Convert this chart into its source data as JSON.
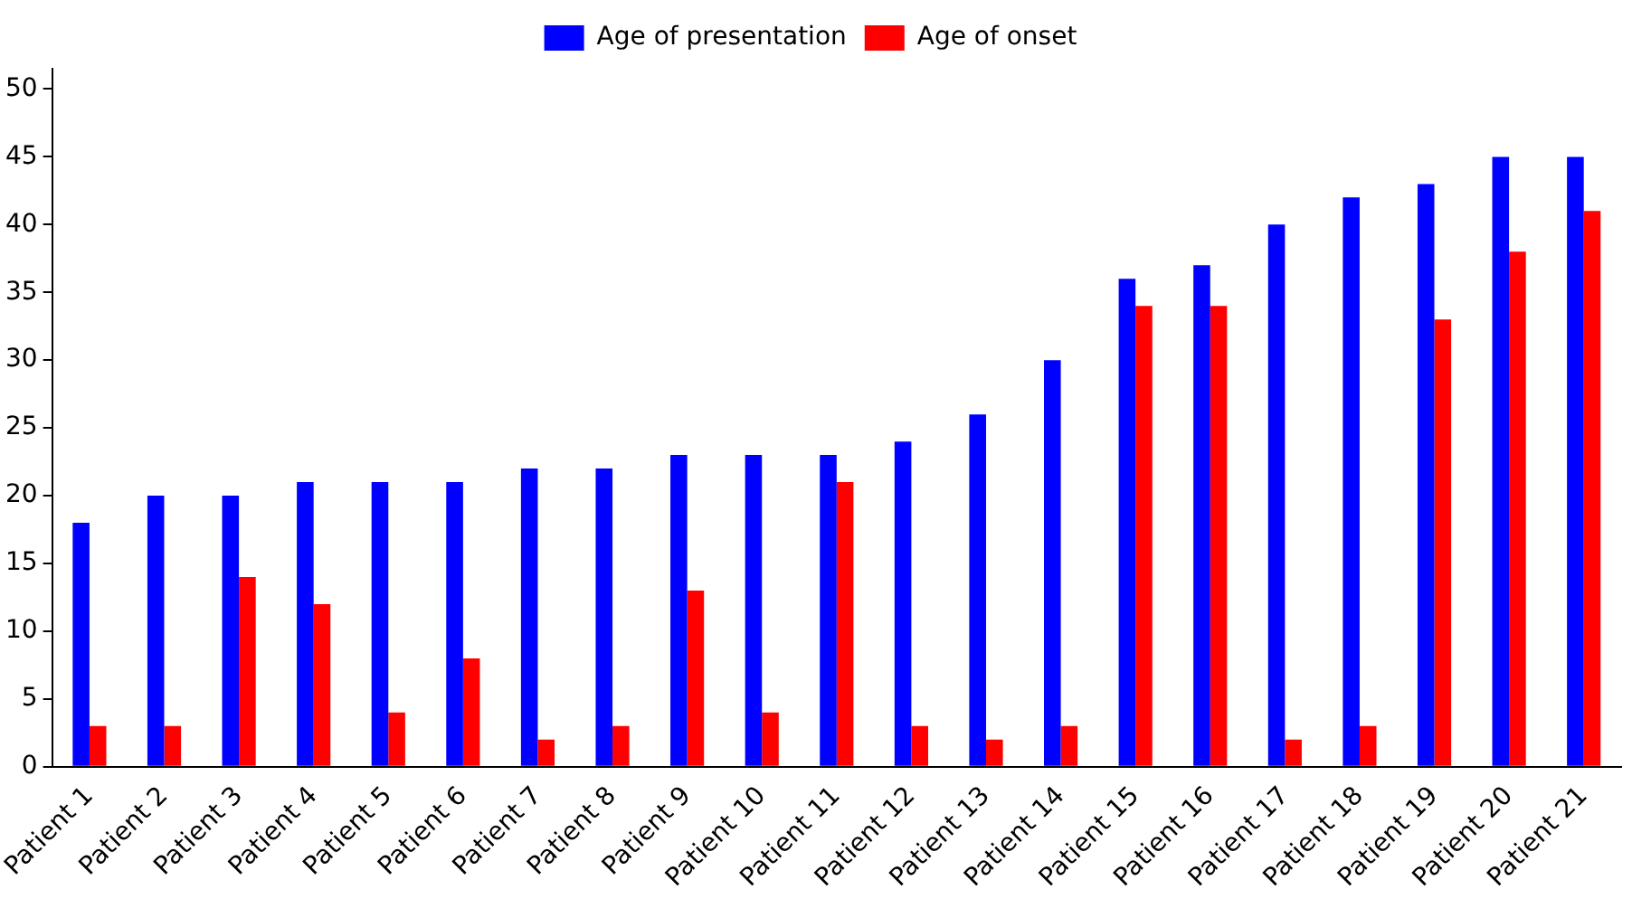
{
  "chart_data": {
    "type": "bar",
    "categories": [
      "Patient 1",
      "Patient 2",
      "Patient 3",
      "Patient 4",
      "Patient 5",
      "Patient 6",
      "Patient 7",
      "Patient 8",
      "Patient 9",
      "Patient 10",
      "Patient 11",
      "Patient 12",
      "Patient 13",
      "Patient 14",
      "Patient 15",
      "Patient 16",
      "Patient 17",
      "Patient 18",
      "Patient 19",
      "Patient 20",
      "Patient 21"
    ],
    "series": [
      {
        "name": "Age of presentation",
        "color": "#0000ff",
        "values": [
          18,
          20,
          20,
          21,
          21,
          21,
          22,
          22,
          23,
          23,
          23,
          24,
          26,
          30,
          36,
          37,
          40,
          42,
          43,
          45,
          45
        ]
      },
      {
        "name": "Age of onset",
        "color": "#ff0000",
        "values": [
          3,
          3,
          14,
          12,
          4,
          8,
          2,
          3,
          13,
          4,
          21,
          3,
          2,
          3,
          34,
          34,
          2,
          3,
          33,
          38,
          41
        ]
      }
    ],
    "ylim": [
      0,
      51.5
    ],
    "yticks": [
      0,
      5,
      10,
      15,
      20,
      25,
      30,
      35,
      40,
      45,
      50
    ],
    "grid": false,
    "legend": "top"
  }
}
